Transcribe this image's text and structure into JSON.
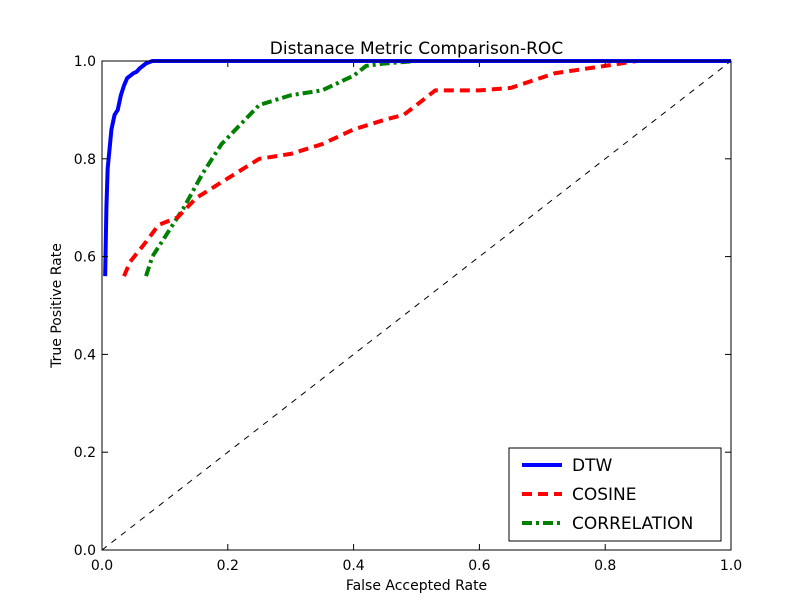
{
  "chart_data": {
    "type": "line",
    "title": "Distanace Metric Comparison-ROC",
    "xlabel": "False Accepted Rate",
    "ylabel": "True Positive Rate",
    "xlim": [
      0.0,
      1.0
    ],
    "ylim": [
      0.0,
      1.0
    ],
    "xticks": [
      "0.0",
      "0.2",
      "0.4",
      "0.6",
      "0.8",
      "1.0"
    ],
    "yticks": [
      "0.0",
      "0.2",
      "0.4",
      "0.6",
      "0.8",
      "1.0"
    ],
    "grid": false,
    "legend_position": "lower-right",
    "series": [
      {
        "name": "DTW",
        "color": "#0000ff",
        "style": "solid",
        "x": [
          0.005,
          0.007,
          0.009,
          0.012,
          0.015,
          0.02,
          0.025,
          0.03,
          0.035,
          0.04,
          0.045,
          0.05,
          0.055,
          0.06,
          0.065,
          0.07,
          0.08,
          0.1,
          0.2,
          0.34,
          0.5,
          1.0
        ],
        "y": [
          0.56,
          0.7,
          0.78,
          0.82,
          0.86,
          0.89,
          0.9,
          0.93,
          0.95,
          0.965,
          0.97,
          0.975,
          0.978,
          0.985,
          0.99,
          0.995,
          1.0,
          1.0,
          1.0,
          1.0,
          1.0,
          1.0
        ]
      },
      {
        "name": "COSINE",
        "color": "#ff0000",
        "style": "dashed",
        "x": [
          0.035,
          0.045,
          0.07,
          0.09,
          0.12,
          0.15,
          0.2,
          0.25,
          0.3,
          0.35,
          0.4,
          0.45,
          0.48,
          0.53,
          0.6,
          0.65,
          0.72,
          0.8,
          0.85,
          1.0
        ],
        "y": [
          0.56,
          0.59,
          0.63,
          0.665,
          0.68,
          0.72,
          0.76,
          0.8,
          0.81,
          0.83,
          0.86,
          0.88,
          0.89,
          0.94,
          0.94,
          0.945,
          0.975,
          0.99,
          1.0,
          1.0
        ]
      },
      {
        "name": "CORRELATION",
        "color": "#008000",
        "style": "dashdot",
        "x": [
          0.07,
          0.08,
          0.1,
          0.13,
          0.16,
          0.19,
          0.22,
          0.25,
          0.3,
          0.35,
          0.4,
          0.42,
          0.45,
          0.5,
          0.6,
          0.8,
          1.0
        ],
        "y": [
          0.56,
          0.6,
          0.64,
          0.7,
          0.77,
          0.83,
          0.87,
          0.91,
          0.93,
          0.94,
          0.97,
          0.99,
          0.995,
          1.0,
          1.0,
          1.0,
          1.0
        ]
      }
    ],
    "reference_line": {
      "color": "#000000",
      "style": "dashed",
      "x": [
        0.0,
        1.0
      ],
      "y": [
        0.0,
        1.0
      ]
    }
  }
}
